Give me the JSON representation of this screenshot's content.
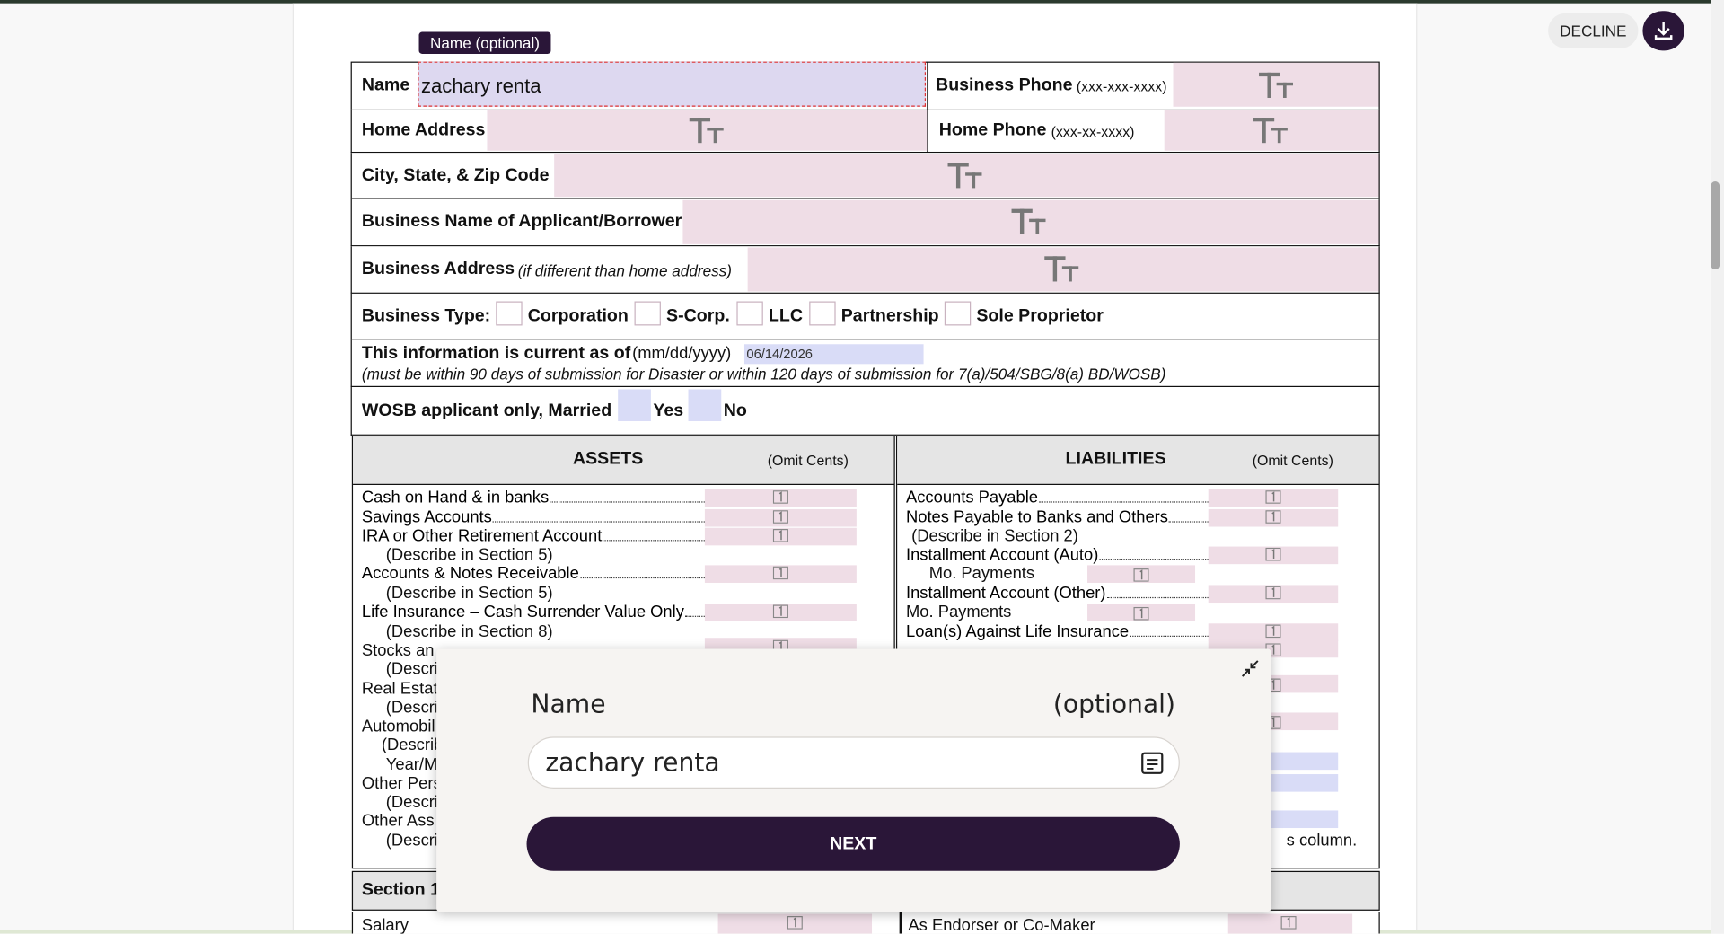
{
  "header": {
    "decline": "DECLINE"
  },
  "form": {
    "tooltip": "Name (optional)",
    "name_label": "Name",
    "name_value": "zachary renta",
    "business_phone_label": "Business Phone",
    "business_phone_hint": "(xxx-xxx-xxxx)",
    "home_address_label": "Home Address",
    "home_phone_label": "Home Phone",
    "home_phone_hint": "(xxx-xx-xxxx)",
    "city_label": "City, State, & Zip Code",
    "business_name_label": "Business Name of Applicant/Borrower",
    "business_address_label": "Business Address",
    "business_address_hint": "(if different than home address)",
    "business_type_label": "Business Type:",
    "business_types": [
      "Corporation",
      "S-Corp.",
      "LLC",
      "Partnership",
      "Sole Proprietor"
    ],
    "current_label": "This information is current as of",
    "current_hint": "(mm/dd/yyyy)",
    "current_date": "06/14/2026",
    "current_note": "(must be within 90 days of submission for Disaster or within 120 days of submission for 7(a)/504/SBG/8(a) BD/WOSB)",
    "wosb_label": "WOSB applicant only, Married",
    "wosb_yes": "Yes",
    "wosb_no": "No"
  },
  "balance": {
    "assets_title": "ASSETS",
    "assets_note": "(Omit Cents)",
    "liabilities_title": "LIABILITIES",
    "liabilities_note": "(Omit Cents)",
    "assets": [
      "Cash on Hand & in banks",
      "Savings Accounts",
      "IRA or Other Retirement Account",
      "(Describe in Section 5)",
      "Accounts & Notes Receivable",
      "(Describe in Section 5)",
      "Life Insurance – Cash Surrender Value Only",
      "(Describe in Section 8)",
      "Stocks an",
      "(Descri",
      "Real Estat",
      "(Descri",
      "Automobil",
      "(Describ",
      "Year/M",
      "Other Pers",
      "(Descri",
      "Other Ass",
      "(Descri"
    ],
    "liabilities": [
      "Accounts Payable",
      "Notes Payable to Banks and Others",
      "(Describe in Section 2)",
      "Installment Account (Auto)",
      "Mo. Payments",
      "Installment Account (Other)",
      "Mo. Payments",
      "Loan(s) Against Life Insurance"
    ],
    "liabilities_tail": "s column.",
    "section_title": "Section 1",
    "salary": "Salary",
    "endorser": "As Endorser or Co-Maker"
  },
  "modal": {
    "title": "Name",
    "optional": "(optional)",
    "input": "zachary renta",
    "button": "NEXT"
  }
}
